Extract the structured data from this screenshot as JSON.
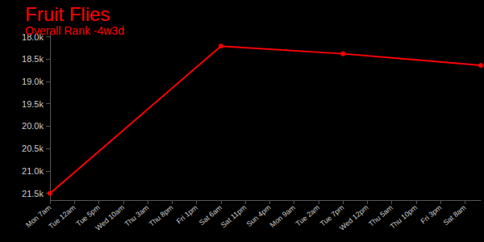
{
  "chart_data": {
    "type": "line",
    "title": "Fruit Flies",
    "subtitle": "Overall Rank -4w3d",
    "x": [
      0,
      119,
      204,
      300
    ],
    "values": [
      21500,
      18210,
      18380,
      18640
    ],
    "color": "#ff0000",
    "xlim": [
      0,
      300
    ],
    "xticks": [
      {
        "value": 0,
        "label": "Mon 7am"
      },
      {
        "value": 17,
        "label": "Tue 12am"
      },
      {
        "value": 34,
        "label": "Tue 5pm"
      },
      {
        "value": 51,
        "label": "Wed 10am"
      },
      {
        "value": 68,
        "label": "Thu 3am"
      },
      {
        "value": 85,
        "label": "Thu 8pm"
      },
      {
        "value": 102,
        "label": "Fri 1pm"
      },
      {
        "value": 119,
        "label": "Sat 6am"
      },
      {
        "value": 136,
        "label": "Sat 11pm"
      },
      {
        "value": 153,
        "label": "Sun 4pm"
      },
      {
        "value": 170,
        "label": "Mon 9am"
      },
      {
        "value": 187,
        "label": "Tue 2am"
      },
      {
        "value": 204,
        "label": "Tue 7pm"
      },
      {
        "value": 221,
        "label": "Wed 12pm"
      },
      {
        "value": 238,
        "label": "Thu 5am"
      },
      {
        "value": 255,
        "label": "Thu 10pm"
      },
      {
        "value": 272,
        "label": "Fri 3pm"
      },
      {
        "value": 289,
        "label": "Sat 8am"
      }
    ],
    "ylim": [
      17900,
      21650
    ],
    "yticks": [
      {
        "value": 18000,
        "label": "18.0k"
      },
      {
        "value": 18500,
        "label": "18.5k"
      },
      {
        "value": 19000,
        "label": "19.0k"
      },
      {
        "value": 19500,
        "label": "19.5k"
      },
      {
        "value": 20000,
        "label": "20.0k"
      },
      {
        "value": 20500,
        "label": "20.5k"
      },
      {
        "value": 21000,
        "label": "21.0k"
      },
      {
        "value": 21500,
        "label": "21.5k"
      }
    ],
    "grid": false,
    "marker": "circle"
  }
}
